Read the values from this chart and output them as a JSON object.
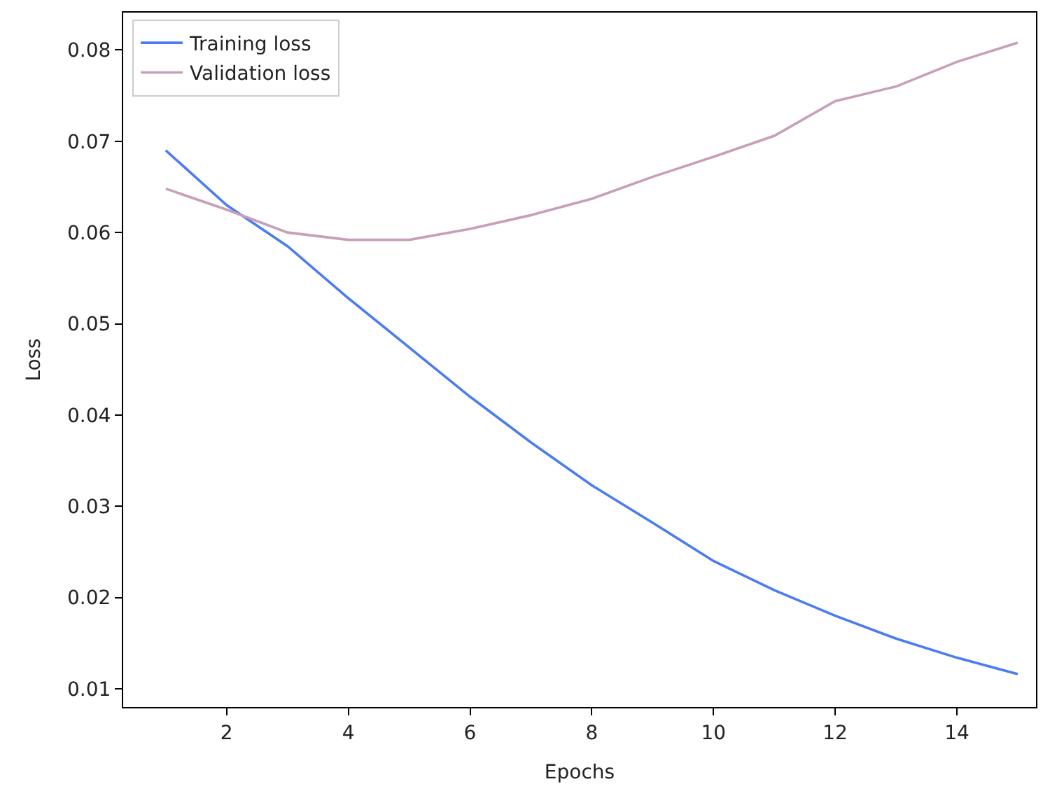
{
  "chart_data": {
    "type": "line",
    "xlabel": "Epochs",
    "ylabel": "Loss",
    "x": [
      1,
      2,
      3,
      4,
      5,
      6,
      7,
      8,
      9,
      10,
      11,
      12,
      13,
      14,
      15
    ],
    "series": [
      {
        "name": "Training loss",
        "color": "#4a7cf2",
        "values": [
          0.069,
          0.063,
          0.0585,
          0.0528,
          0.0474,
          0.042,
          0.037,
          0.0323,
          0.0282,
          0.024,
          0.0208,
          0.018,
          0.0155,
          0.0134,
          0.0116
        ]
      },
      {
        "name": "Validation loss",
        "color": "#c79fb9",
        "values": [
          0.0648,
          0.0625,
          0.06,
          0.0592,
          0.0592,
          0.0604,
          0.0619,
          0.0637,
          0.0661,
          0.0683,
          0.0706,
          0.0744,
          0.076,
          0.0787,
          0.0808
        ]
      }
    ],
    "xlim": [
      0.3,
      15.3
    ],
    "ylim": [
      0.008,
      0.0841
    ],
    "xticks": [
      2,
      4,
      6,
      8,
      10,
      12,
      14
    ],
    "yticks": [
      0.01,
      0.02,
      0.03,
      0.04,
      0.05,
      0.06,
      0.07,
      0.08
    ],
    "grid": false,
    "legend": "top left",
    "marker": "none",
    "line_style": "solid"
  }
}
